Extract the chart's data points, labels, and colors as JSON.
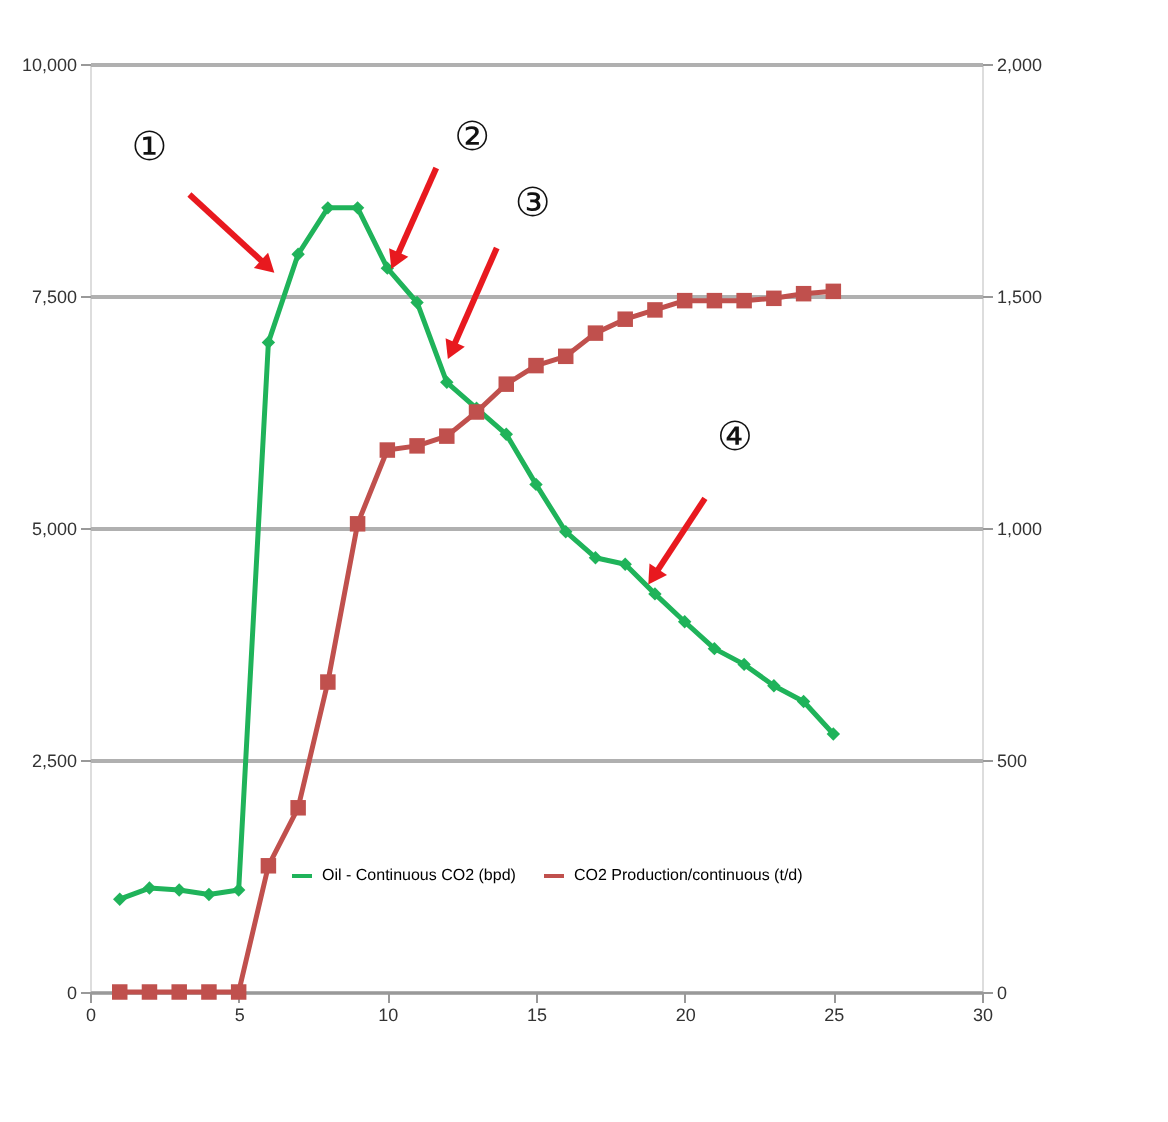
{
  "chart_data": {
    "type": "line",
    "x": [
      1,
      2,
      3,
      4,
      5,
      6,
      7,
      8,
      9,
      10,
      11,
      12,
      13,
      14,
      15,
      16,
      17,
      18,
      19,
      20,
      21,
      22,
      23,
      24,
      25
    ],
    "series": [
      {
        "name": "Oil - Continuous CO2 (bpd)",
        "color": "#1fb35a",
        "marker": "diamond",
        "values": [
          1000,
          1120,
          1100,
          1050,
          1100,
          7000,
          7950,
          8450,
          8450,
          7800,
          7430,
          6570,
          6290,
          6010,
          5470,
          4960,
          4680,
          4610,
          4290,
          3990,
          3700,
          3530,
          3300,
          3130,
          2780
        ]
      },
      {
        "name": "CO2 Production/continuous (t/d)",
        "color": "#c0504d",
        "marker": "square",
        "axis": "y2",
        "values": [
          0,
          0,
          0,
          0,
          0,
          272,
          397,
          668,
          1009,
          1168,
          1177,
          1198,
          1250,
          1310,
          1350,
          1370,
          1420,
          1450,
          1470,
          1490,
          1490,
          1490,
          1495,
          1505,
          1510
        ]
      }
    ],
    "xlim": [
      0,
      30
    ],
    "xticks": [
      0,
      5,
      10,
      15,
      20,
      25,
      30
    ],
    "ylim": [
      0,
      10000
    ],
    "yticks": [
      0,
      {
        "value": 2500,
        "label": "2,500"
      },
      {
        "value": 5000,
        "label": "5,000"
      },
      {
        "value": 7500,
        "label": "7,500"
      },
      {
        "value": 10000,
        "label": "10,000"
      }
    ],
    "y2lim": [
      0,
      2000
    ],
    "y2ticks": [
      0,
      500,
      {
        "value": 1000,
        "label": "1,000"
      },
      {
        "value": 1500,
        "label": "1,500"
      },
      {
        "value": 2000,
        "label": "2,000"
      }
    ],
    "grid": "y",
    "legend": "bottom",
    "line_style": "solid",
    "annotations": [
      {
        "text": "①",
        "x": 5.9,
        "y": 7840
      },
      {
        "text": "②",
        "x": 10.3,
        "y": 7910
      },
      {
        "text": "③",
        "x": 12.2,
        "y": 6940
      },
      {
        "text": "④",
        "x": 19.0,
        "y": 4500
      }
    ]
  }
}
